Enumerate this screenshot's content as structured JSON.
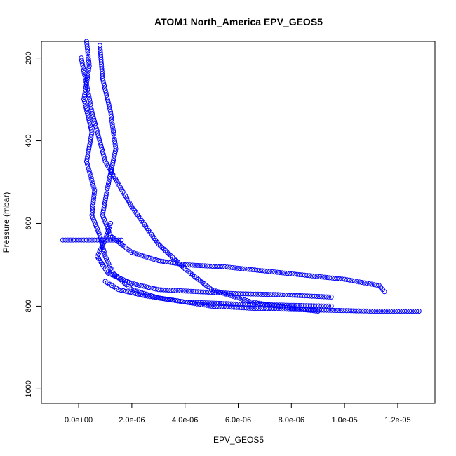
{
  "chart_data": {
    "type": "scatter",
    "title": "ATOM1 North_America EPV_GEOS5",
    "xlabel": "EPV_GEOS5",
    "ylabel": "Pressure (mbar)",
    "xlim": [
      -1.4e-06,
      1.34e-05
    ],
    "ylim": [
      1035,
      160
    ],
    "y_inverted": true,
    "x_ticks": [
      0,
      2e-06,
      4e-06,
      6e-06,
      8e-06,
      1e-05,
      1.2e-05
    ],
    "x_tick_labels": [
      "0.0e+00",
      "2.0e-06",
      "4.0e-06",
      "6.0e-06",
      "8.0e-06",
      "1.0e-05",
      "1.2e-05"
    ],
    "y_ticks": [
      200,
      400,
      600,
      800,
      1000
    ],
    "y_tick_labels": [
      "200",
      "400",
      "600",
      "800",
      "1000"
    ],
    "marker": "open-circle",
    "color": "#0000ff",
    "grid": false,
    "series": [
      {
        "x": [
          3e-07,
          4e-07,
          2e-07,
          5e-07,
          3e-07,
          6e-07,
          5e-07,
          8e-07,
          1e-06,
          1.3e-06,
          2e-06,
          3e-06,
          4e-06,
          5e-06,
          6.5e-06,
          8e-06,
          9.5e-06,
          1.1e-05,
          1.2e-05,
          1.28e-05
        ],
        "y": [
          160,
          220,
          300,
          380,
          450,
          520,
          580,
          630,
          680,
          720,
          760,
          780,
          790,
          800,
          805,
          808,
          810,
          812,
          812,
          812
        ]
      },
      {
        "x": [
          8e-07,
          9e-07,
          1.2e-06,
          1.4e-06,
          1.1e-06,
          9e-07,
          1.2e-06,
          2e-06,
          3e-06,
          4e-06,
          5.5e-06,
          7e-06,
          8.5e-06,
          1e-05,
          1.13e-05,
          1.15e-05
        ],
        "y": [
          170,
          250,
          330,
          420,
          510,
          580,
          630,
          670,
          690,
          700,
          705,
          715,
          725,
          735,
          750,
          765
        ]
      },
      {
        "x": [
          1.2e-06,
          1e-06,
          7e-07,
          1.1e-06,
          2e-06,
          3e-06,
          4.5e-06,
          6e-06,
          7.5e-06,
          8.5e-06,
          9.5e-06
        ],
        "y": [
          600,
          640,
          680,
          720,
          745,
          760,
          765,
          770,
          772,
          775,
          778
        ]
      },
      {
        "x": [
          1e-06,
          1.5e-06,
          2.5e-06,
          4e-06,
          6e-06,
          8e-06,
          9.5e-06
        ],
        "y": [
          740,
          760,
          775,
          790,
          795,
          798,
          800
        ]
      },
      {
        "x": [
          -6e-07,
          0,
          5e-07,
          1e-06,
          1.5e-06,
          1.6e-06
        ],
        "y": [
          640,
          640,
          640,
          640,
          640,
          640
        ]
      },
      {
        "x": [
          1e-07,
          5e-07,
          1e-06,
          2e-06,
          3e-06,
          4e-06,
          5e-06,
          6.5e-06,
          8e-06,
          9e-06
        ],
        "y": [
          200,
          330,
          450,
          560,
          650,
          710,
          760,
          790,
          805,
          812
        ]
      }
    ]
  }
}
